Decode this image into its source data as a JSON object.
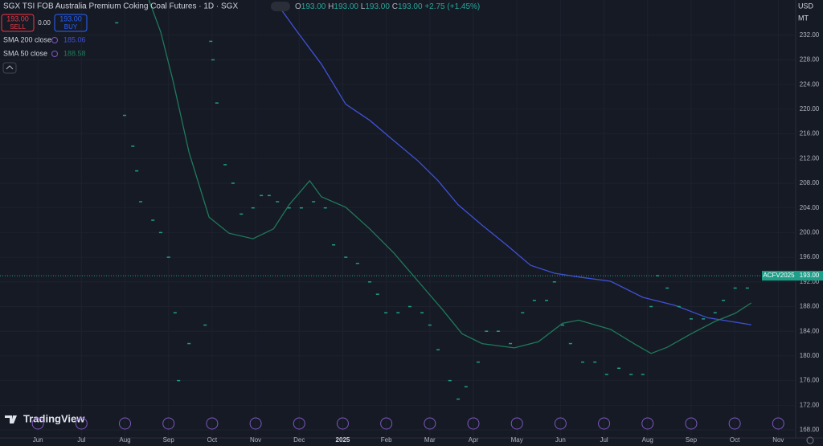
{
  "ui": {
    "sell_price": "193.00",
    "sell": "SELL",
    "spread": "0.00",
    "buy_price": "193.00",
    "buy": "BUY",
    "currency": "USD",
    "unit": "MT",
    "brand": "TradingView"
  },
  "chart_data": {
    "type": "line",
    "title": "SGX TSI FOB Australia Premium Coking Coal Futures · 1D · SGX",
    "ohlc": [
      {
        "key": "O",
        "value": "193.00"
      },
      {
        "key": "H",
        "value": "193.00"
      },
      {
        "key": "L",
        "value": "193.00"
      },
      {
        "key": "C",
        "value": "193.00"
      }
    ],
    "change": "+2.75 (+1.45%)",
    "xlim": [
      -0.87,
      17.4
    ],
    "xticks": [
      {
        "value": 0,
        "label": "Jun"
      },
      {
        "value": 1,
        "label": "Jul"
      },
      {
        "value": 2,
        "label": "Aug"
      },
      {
        "value": 3,
        "label": "Sep"
      },
      {
        "value": 4,
        "label": "Oct"
      },
      {
        "value": 5,
        "label": "Nov"
      },
      {
        "value": 6,
        "label": "Dec"
      },
      {
        "value": 7,
        "label": "2025"
      },
      {
        "value": 8,
        "label": "Feb"
      },
      {
        "value": 9,
        "label": "Mar"
      },
      {
        "value": 10,
        "label": "Apr"
      },
      {
        "value": 11,
        "label": "May"
      },
      {
        "value": 12,
        "label": "Jun"
      },
      {
        "value": 13,
        "label": "Jul"
      },
      {
        "value": 14,
        "label": "Aug"
      },
      {
        "value": 15,
        "label": "Sep"
      },
      {
        "value": 16,
        "label": "Oct"
      },
      {
        "value": 17,
        "label": "Nov"
      }
    ],
    "ylim": [
      166.7,
      237.7
    ],
    "yticks": [
      {
        "value": 168,
        "label": "168.00"
      },
      {
        "value": 172,
        "label": "172.00"
      },
      {
        "value": 176,
        "label": "176.00"
      },
      {
        "value": 180,
        "label": "180.00"
      },
      {
        "value": 184,
        "label": "184.00"
      },
      {
        "value": 188,
        "label": "188.00"
      },
      {
        "value": 192,
        "label": "192.00"
      },
      {
        "value": 196,
        "label": "196.00"
      },
      {
        "value": 200,
        "label": "200.00"
      },
      {
        "value": 204,
        "label": "204.00"
      },
      {
        "value": 208,
        "label": "208.00"
      },
      {
        "value": 212,
        "label": "212.00"
      },
      {
        "value": 216,
        "label": "216.00"
      },
      {
        "value": 220,
        "label": "220.00"
      },
      {
        "value": 224,
        "label": "224.00"
      },
      {
        "value": 228,
        "label": "228.00"
      },
      {
        "value": 232,
        "label": "232.00"
      }
    ],
    "grid": true,
    "last_price": {
      "value": 193,
      "label": "193.00"
    },
    "series": [
      {
        "name": "SMA 200 close",
        "color": "#3f51d6",
        "value_label": "185.06",
        "x": [
          5.5,
          5.96,
          6.51,
          7.07,
          7.62,
          8.17,
          8.73,
          9.19,
          9.65,
          10.2,
          10.76,
          11.31,
          11.86,
          12.42,
          13.15,
          13.89,
          14.63,
          15.37,
          16.38
        ],
        "values": [
          237,
          232.5,
          227.3,
          220.8,
          218.2,
          214.9,
          211.6,
          208.4,
          204.5,
          201.2,
          198,
          194.7,
          193.4,
          192.8,
          192.1,
          189.5,
          188.2,
          186.2,
          185.06
        ]
      },
      {
        "name": "SMA 50 close",
        "color": "#1f7a5a",
        "value_label": "188.58",
        "x": [
          2.55,
          2.82,
          3.1,
          3.47,
          3.93,
          4.39,
          4.94,
          5.41,
          5.77,
          6.24,
          6.51,
          7.07,
          7.62,
          8.17,
          8.73,
          9.28,
          9.74,
          10.2,
          10.94,
          11.49,
          12.05,
          12.42,
          13.15,
          13.71,
          14.08,
          14.45,
          15.0,
          15.55,
          16.01,
          16.38
        ],
        "values": [
          237.7,
          232.5,
          224.7,
          213,
          202.5,
          199.9,
          199,
          200.6,
          204.5,
          208.4,
          205.8,
          204.1,
          200.6,
          196.7,
          192.1,
          187.6,
          183.6,
          182,
          181.3,
          182.3,
          185.3,
          185.8,
          184.3,
          181.9,
          180.4,
          181.4,
          183.6,
          185.6,
          186.9,
          188.58
        ]
      },
      {
        "name": "ACFV2025",
        "color": "#1f9e89",
        "x": [
          1.81,
          1.99,
          2.18,
          2.27,
          2.36,
          2.64,
          2.82,
          3.0,
          3.15,
          3.23,
          3.47,
          3.84,
          3.97,
          4.02,
          4.11,
          4.3,
          4.48,
          4.67,
          4.94,
          5.13,
          5.31,
          5.5,
          5.77,
          6.05,
          6.33,
          6.6,
          6.79,
          7.07,
          7.34,
          7.62,
          7.8,
          7.99,
          8.27,
          8.54,
          8.82,
          9.0,
          9.19,
          9.46,
          9.65,
          9.83,
          10.11,
          10.3,
          10.57,
          10.85,
          11.13,
          11.4,
          11.68,
          11.86,
          12.05,
          12.23,
          12.51,
          12.79,
          13.06,
          13.34,
          13.62,
          13.89,
          14.08,
          14.23,
          14.45,
          14.72,
          15.0,
          15.28,
          15.55,
          15.74,
          16.01,
          16.29
        ],
        "values": [
          234,
          219,
          214,
          210,
          205,
          202,
          200,
          196,
          187,
          176,
          182,
          185,
          231,
          228,
          221,
          211,
          208,
          203,
          204,
          206,
          206,
          205,
          204,
          204,
          205,
          204,
          198,
          196,
          195,
          192,
          190,
          187,
          187,
          188,
          187,
          185,
          181,
          176,
          173,
          175,
          179,
          184,
          184,
          182,
          187,
          189,
          189,
          192,
          185,
          182,
          179,
          179,
          177,
          178,
          177,
          177,
          188,
          193,
          191,
          188,
          186,
          186,
          187,
          189,
          191,
          191
        ]
      }
    ]
  }
}
